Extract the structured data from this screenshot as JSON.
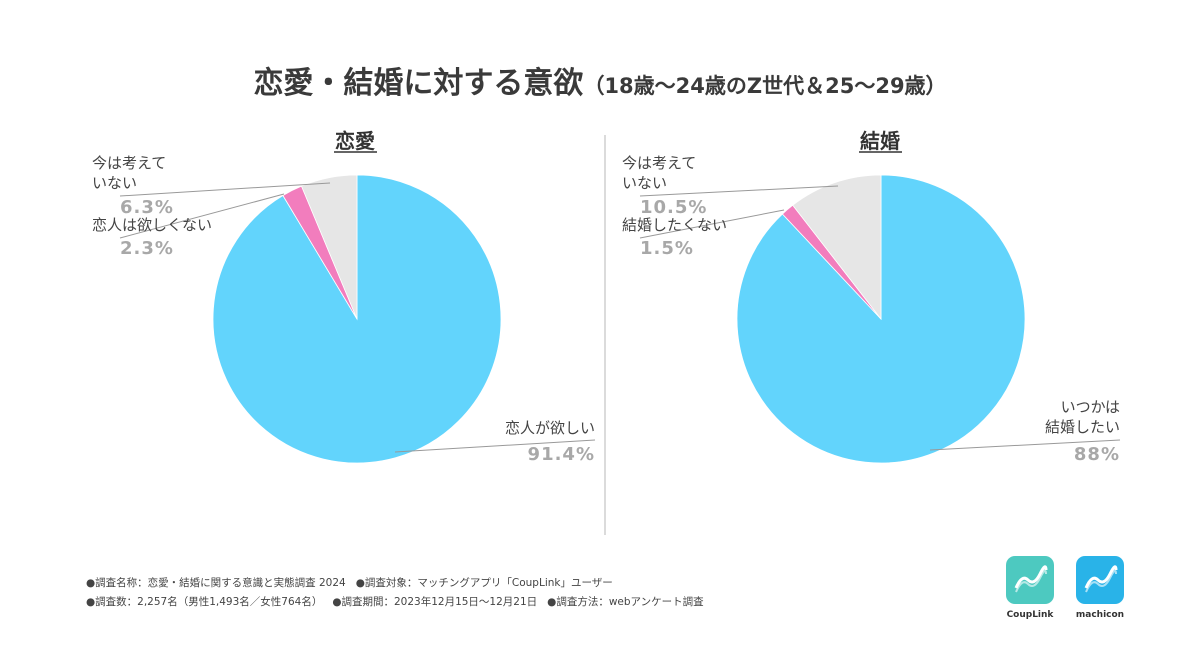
{
  "title": {
    "main": "恋愛・結婚に対する意欲",
    "sub": "（18歳～24歳のZ世代＆25～29歳）"
  },
  "chart_data": [
    {
      "type": "pie",
      "title": "恋愛",
      "slices": [
        {
          "label": "恋人が欲しい",
          "value": 91.4,
          "display": "91.4%",
          "color": "#62d4fc"
        },
        {
          "label": "恋人は欲しくない",
          "value": 2.3,
          "display": "2.3%",
          "color": "#f27dbd"
        },
        {
          "label": "今は考えて いない",
          "value": 6.3,
          "display": "6.3%",
          "color": "#e6e6e6"
        }
      ]
    },
    {
      "type": "pie",
      "title": "結婚",
      "slices": [
        {
          "label": "いつかは 結婚したい",
          "value": 88,
          "display": "88%",
          "color": "#62d4fc"
        },
        {
          "label": "結婚したくない",
          "value": 1.5,
          "display": "1.5%",
          "color": "#f27dbd"
        },
        {
          "label": "今は考えて いない",
          "value": 10.5,
          "display": "10.5%",
          "color": "#e6e6e6"
        }
      ]
    }
  ],
  "footer": {
    "line1a": "●調査名称：恋愛・結婚に関する意識と実態調査 2024",
    "line1b": "●調査対象：マッチングアプリ「CoupLink」ユーザー",
    "line2a": "●調査数：2,257名（男性1,493名／女性764名）",
    "line2b": "●調査期間：2023年12月15日～12月21日",
    "line2c": "●調査方法：webアンケート調査"
  },
  "logos": {
    "couplink": {
      "caption": "CoupLink",
      "color": "#4dc9c0"
    },
    "machicon": {
      "caption": "machicon",
      "color": "#29b3e8"
    }
  }
}
